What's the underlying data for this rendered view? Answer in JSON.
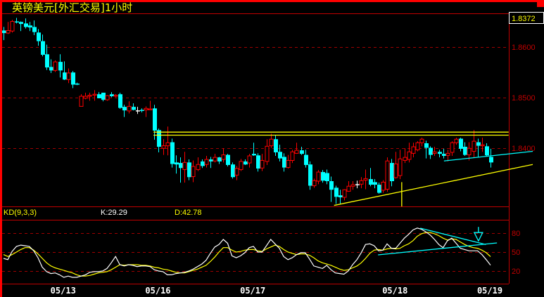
{
  "window": {
    "title": "英镑美元[外汇交易]1小时"
  },
  "colors": {
    "up": "#ff0000",
    "down": "#00ffff",
    "flat": "#ffffff",
    "grid": "#a00000",
    "frame": "#ff0000",
    "k_line": "#ffffff",
    "d_line": "#ffff00",
    "trendline_yellow": "#ffff00",
    "trendline_cyan": "#00ffff",
    "background": "#000000"
  },
  "chart_data": [
    {
      "type": "candlestick",
      "title": "英镑美元[外汇交易]1小时",
      "last_price": "1.8372",
      "ylim": [
        1.8285,
        1.8667
      ],
      "y_ticks": [
        "1.8600",
        "1.8500",
        "1.8400"
      ],
      "x_ticks": [
        {
          "index": 14,
          "label": "05/13"
        },
        {
          "index": 36,
          "label": "05/16"
        },
        {
          "index": 58,
          "label": "05/17"
        },
        {
          "index": 91,
          "label": "05/18"
        },
        {
          "index": 113,
          "label": "05/19"
        }
      ],
      "grid": "horizontal-dashed",
      "ohlc": [
        [
          1.8633,
          1.864,
          1.8614,
          1.8628
        ],
        [
          1.8628,
          1.865,
          1.8626,
          1.8633
        ],
        [
          1.8632,
          1.8654,
          1.8629,
          1.8651
        ],
        [
          1.8651,
          1.8658,
          1.8647,
          1.8649
        ],
        [
          1.865,
          1.8651,
          1.8632,
          1.8646
        ],
        [
          1.8647,
          1.8657,
          1.8637,
          1.864
        ],
        [
          1.8643,
          1.865,
          1.8632,
          1.8639
        ],
        [
          1.864,
          1.8653,
          1.8624,
          1.863
        ],
        [
          1.8629,
          1.8636,
          1.8603,
          1.8612
        ],
        [
          1.8612,
          1.8625,
          1.8582,
          1.8585
        ],
        [
          1.8586,
          1.8605,
          1.8555,
          1.856
        ],
        [
          1.8561,
          1.8576,
          1.8549,
          1.8554
        ],
        [
          1.8554,
          1.8574,
          1.8551,
          1.8571
        ],
        [
          1.8571,
          1.8586,
          1.854,
          1.8554
        ],
        [
          1.855,
          1.8572,
          1.8535,
          1.8536
        ],
        [
          1.8536,
          1.8558,
          1.8529,
          1.8549
        ],
        [
          1.855,
          1.8553,
          1.8519,
          1.8526
        ],
        [
          1.8528,
          1.853,
          1.8525,
          1.8526
        ],
        [
          1.8483,
          1.8507,
          1.8483,
          1.8503
        ],
        [
          1.8499,
          1.851,
          1.8497,
          1.8503
        ],
        [
          1.8503,
          1.851,
          1.8494,
          1.8505
        ],
        [
          1.8505,
          1.8515,
          1.8494,
          1.8507
        ],
        [
          1.8507,
          1.8511,
          1.8499,
          1.8499
        ],
        [
          1.851,
          1.851,
          1.8493,
          1.8496
        ],
        [
          1.8496,
          1.8505,
          1.8494,
          1.8504
        ],
        [
          1.8507,
          1.8511,
          1.8501,
          1.8503
        ],
        [
          1.8503,
          1.8507,
          1.8501,
          1.8505
        ],
        [
          1.8507,
          1.851,
          1.8478,
          1.848
        ],
        [
          1.8482,
          1.8486,
          1.8462,
          1.8475
        ],
        [
          1.8474,
          1.8493,
          1.8469,
          1.8483
        ],
        [
          1.8482,
          1.8489,
          1.8475,
          1.8476
        ],
        [
          1.8475,
          1.8482,
          1.8468,
          1.8475
        ],
        [
          1.8476,
          1.8479,
          1.8471,
          1.8474
        ],
        [
          1.8476,
          1.8483,
          1.8462,
          1.8479
        ],
        [
          1.8476,
          1.8494,
          1.8476,
          1.8478
        ],
        [
          1.8479,
          1.8486,
          1.8417,
          1.8435
        ],
        [
          1.8436,
          1.8439,
          1.8392,
          1.8403
        ],
        [
          1.84,
          1.8418,
          1.8387,
          1.8405
        ],
        [
          1.8405,
          1.8443,
          1.8386,
          1.8411
        ],
        [
          1.8412,
          1.8419,
          1.8362,
          1.8369
        ],
        [
          1.8372,
          1.8386,
          1.835,
          1.8368
        ],
        [
          1.8371,
          1.8382,
          1.8332,
          1.8361
        ],
        [
          1.8358,
          1.8393,
          1.8332,
          1.8372
        ],
        [
          1.8372,
          1.8378,
          1.8337,
          1.8343
        ],
        [
          1.8344,
          1.8376,
          1.8333,
          1.8364
        ],
        [
          1.8358,
          1.8382,
          1.8355,
          1.8368
        ],
        [
          1.8374,
          1.8378,
          1.8361,
          1.8365
        ],
        [
          1.8368,
          1.8385,
          1.8362,
          1.8378
        ],
        [
          1.8378,
          1.8383,
          1.8361,
          1.8374
        ],
        [
          1.8375,
          1.8389,
          1.8372,
          1.8382
        ],
        [
          1.8382,
          1.8383,
          1.8369,
          1.8374
        ],
        [
          1.8378,
          1.84,
          1.8372,
          1.8387
        ],
        [
          1.8387,
          1.8389,
          1.8364,
          1.8367
        ],
        [
          1.8368,
          1.8372,
          1.834,
          1.8343
        ],
        [
          1.8347,
          1.8365,
          1.8337,
          1.836
        ],
        [
          1.8358,
          1.8379,
          1.8355,
          1.8374
        ],
        [
          1.8374,
          1.8378,
          1.8367,
          1.8368
        ],
        [
          1.8371,
          1.8389,
          1.8362,
          1.8385
        ],
        [
          1.8389,
          1.8411,
          1.8385,
          1.8386
        ],
        [
          1.8386,
          1.839,
          1.8354,
          1.836
        ],
        [
          1.8361,
          1.8389,
          1.8355,
          1.8376
        ],
        [
          1.8374,
          1.8418,
          1.8367,
          1.8404
        ],
        [
          1.8405,
          1.8429,
          1.8401,
          1.8418
        ],
        [
          1.8418,
          1.8426,
          1.8385,
          1.8392
        ],
        [
          1.8393,
          1.8407,
          1.8374,
          1.838
        ],
        [
          1.8383,
          1.839,
          1.8354,
          1.8362
        ],
        [
          1.8362,
          1.8387,
          1.836,
          1.8376
        ],
        [
          1.8376,
          1.8397,
          1.8371,
          1.8393
        ],
        [
          1.839,
          1.8411,
          1.8389,
          1.8396
        ],
        [
          1.8396,
          1.8403,
          1.8387,
          1.8389
        ],
        [
          1.8387,
          1.8397,
          1.8362,
          1.8367
        ],
        [
          1.8368,
          1.8374,
          1.8318,
          1.8326
        ],
        [
          1.8326,
          1.834,
          1.8322,
          1.8336
        ],
        [
          1.8335,
          1.8357,
          1.8329,
          1.8353
        ],
        [
          1.8353,
          1.8357,
          1.8332,
          1.8336
        ],
        [
          1.8351,
          1.8358,
          1.8329,
          1.8335
        ],
        [
          1.8335,
          1.8344,
          1.8294,
          1.8318
        ],
        [
          1.8322,
          1.8326,
          1.829,
          1.8304
        ],
        [
          1.8307,
          1.8318,
          1.829,
          1.8303
        ],
        [
          1.8303,
          1.8319,
          1.8297,
          1.8318
        ],
        [
          1.8315,
          1.8335,
          1.8314,
          1.8325
        ],
        [
          1.8325,
          1.8335,
          1.8318,
          1.8328
        ],
        [
          1.8329,
          1.8336,
          1.8321,
          1.8329
        ],
        [
          1.8329,
          1.8343,
          1.8321,
          1.8336
        ],
        [
          1.8337,
          1.8358,
          1.8319,
          1.834
        ],
        [
          1.8339,
          1.8361,
          1.8325,
          1.8328
        ],
        [
          1.8333,
          1.8339,
          1.8321,
          1.8328
        ],
        [
          1.8328,
          1.8332,
          1.831,
          1.8312
        ],
        [
          1.8317,
          1.8337,
          1.8312,
          1.8333
        ],
        [
          1.8319,
          1.8382,
          1.8314,
          1.8375
        ],
        [
          1.8371,
          1.8379,
          1.8325,
          1.8335
        ],
        [
          1.8342,
          1.8393,
          1.834,
          1.8369
        ],
        [
          1.8346,
          1.8397,
          1.8339,
          1.8379
        ],
        [
          1.8376,
          1.84,
          1.8371,
          1.8382
        ],
        [
          1.8378,
          1.8411,
          1.8372,
          1.8393
        ],
        [
          1.839,
          1.8411,
          1.8382,
          1.8403
        ],
        [
          1.8397,
          1.8414,
          1.8394,
          1.8411
        ],
        [
          1.8411,
          1.8421,
          1.8404,
          1.8418
        ],
        [
          1.841,
          1.8415,
          1.838,
          1.8401
        ],
        [
          1.8401,
          1.8404,
          1.8379,
          1.8387
        ],
        [
          1.839,
          1.8403,
          1.8385,
          1.8393
        ],
        [
          1.8393,
          1.8397,
          1.8382,
          1.8389
        ],
        [
          1.8389,
          1.8399,
          1.838,
          1.8385
        ],
        [
          1.8386,
          1.8397,
          1.8374,
          1.839
        ],
        [
          1.8392,
          1.8414,
          1.8385,
          1.8411
        ],
        [
          1.8411,
          1.8421,
          1.8407,
          1.8418
        ],
        [
          1.8419,
          1.8421,
          1.8394,
          1.8399
        ],
        [
          1.8403,
          1.8412,
          1.8385,
          1.8387
        ],
        [
          1.8387,
          1.8412,
          1.8376,
          1.84
        ],
        [
          1.8394,
          1.8436,
          1.8382,
          1.8414
        ],
        [
          1.8412,
          1.8419,
          1.8382,
          1.8405
        ],
        [
          1.8405,
          1.8421,
          1.8393,
          1.8407
        ],
        [
          1.8404,
          1.841,
          1.8385,
          1.8386
        ],
        [
          1.8383,
          1.8399,
          1.8362,
          1.8372
        ]
      ],
      "trendlines": [
        {
          "color": "yellow",
          "from": [
            34.8,
            1.8432
          ],
          "to": [
            117.2,
            1.8432
          ]
        },
        {
          "color": "yellow",
          "from": [
            34.8,
            1.8426
          ],
          "to": [
            117.2,
            1.8426
          ]
        },
        {
          "color": "yellow",
          "from": [
            76.7,
            1.8287
          ],
          "to": [
            122.8,
            1.8368
          ]
        },
        {
          "color": "cyan",
          "from": [
            102.2,
            1.8375
          ],
          "to": [
            122.8,
            1.8394
          ]
        }
      ],
      "vertical_marker": {
        "index": 92.4,
        "from_price": 1.8333
      }
    },
    {
      "type": "line",
      "indicator": "KD(9,3,3)",
      "k_label": "K:29.29",
      "d_label": "D:42.78",
      "ylim": [
        0,
        100
      ],
      "y_ticks": [
        "80",
        "50",
        "20"
      ],
      "series": [
        {
          "name": "K",
          "values": [
            40,
            38,
            51,
            59,
            61,
            60,
            59,
            52,
            41,
            26,
            19,
            16,
            17,
            14,
            10,
            12,
            10,
            10,
            12,
            14,
            18,
            19,
            19,
            20,
            24,
            33,
            43,
            30,
            28,
            30,
            29,
            27,
            28,
            28,
            27,
            22,
            20,
            19,
            14,
            14,
            16,
            17,
            18,
            20,
            23,
            27,
            31,
            37,
            48,
            58,
            62,
            70,
            64,
            44,
            41,
            44,
            49,
            57,
            59,
            50,
            50,
            60,
            70,
            63,
            56,
            43,
            38,
            41,
            46,
            49,
            49,
            39,
            28,
            26,
            24,
            29,
            22,
            17,
            16,
            15,
            20,
            30,
            38,
            49,
            62,
            63,
            60,
            52,
            53,
            63,
            56,
            56,
            64,
            72,
            78,
            85,
            88,
            86,
            82,
            77,
            70,
            62,
            57,
            68,
            72,
            64,
            56,
            54,
            52,
            52,
            52,
            46,
            38,
            29.29
          ]
        },
        {
          "name": "D",
          "values": [
            46,
            43,
            46,
            50,
            54,
            57,
            57,
            53,
            47,
            40,
            33,
            28,
            25,
            23,
            21,
            19,
            17,
            14,
            12,
            12,
            13,
            15,
            17,
            18,
            19,
            22,
            26,
            30,
            29,
            30,
            30,
            30,
            29,
            29,
            28,
            26,
            25,
            23,
            22,
            20,
            18,
            17,
            17,
            19,
            21,
            23,
            26,
            29,
            35,
            42,
            50,
            57,
            57,
            53,
            50,
            51,
            53,
            54,
            54,
            52,
            51,
            55,
            58,
            61,
            59,
            54,
            50,
            48,
            46,
            47,
            47,
            45,
            41,
            36,
            33,
            31,
            29,
            26,
            23,
            21,
            22,
            25,
            28,
            33,
            40,
            48,
            53,
            54,
            53,
            55,
            56,
            55,
            56,
            60,
            63,
            68,
            75,
            79,
            81,
            81,
            79,
            76,
            72,
            69,
            71,
            70,
            66,
            62,
            59,
            57,
            56,
            53,
            49,
            42.78
          ]
        }
      ],
      "trendlines": [
        {
          "color": "cyan",
          "from": [
            96.7,
            87.8
          ],
          "to": [
            111.9,
            62
          ]
        },
        {
          "color": "cyan",
          "from": [
            86.9,
            45.6
          ],
          "to": [
            114.5,
            64.4
          ]
        }
      ],
      "arrow_marker": {
        "index": 110.2,
        "value": 82,
        "direction": "down",
        "icon": "down-arrow-icon"
      }
    }
  ]
}
